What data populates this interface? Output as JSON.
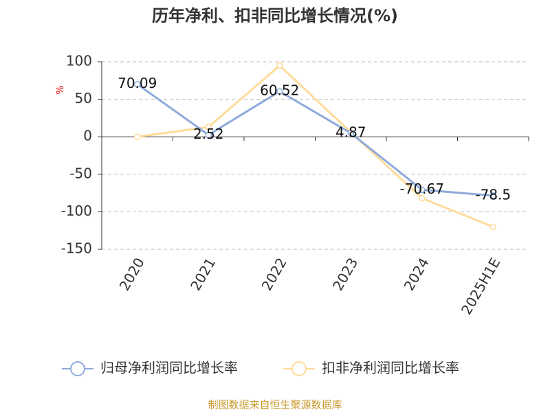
{
  "chart_data": {
    "type": "line",
    "title": "历年净利、扣非同比增长情况(%)",
    "y_label": "%",
    "categories": [
      "2020",
      "2021",
      "2022",
      "2023",
      "2024",
      "2025H1E"
    ],
    "series": [
      {
        "name": "归母净利润同比增长率",
        "color": "#8eaadb",
        "values": [
          70.09,
          2.52,
          60.52,
          4.87,
          -70.67,
          -78.5
        ],
        "show_labels": true
      },
      {
        "name": "扣非净利润同比增长率",
        "color": "#ffdb9a",
        "values": [
          0,
          13,
          95,
          6,
          -82,
          -120
        ],
        "show_labels": false
      }
    ],
    "ylim": [
      -150,
      100
    ],
    "yticks": [
      -150,
      -100,
      -50,
      0,
      50,
      100
    ],
    "grid": true,
    "source": "制图数据来自恒生聚源数据库"
  }
}
